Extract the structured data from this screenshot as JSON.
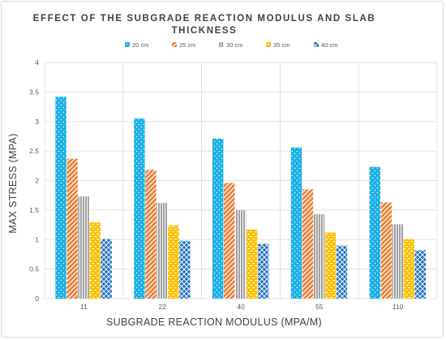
{
  "chart_data": {
    "type": "bar",
    "title_line1": "EFFECT OF THE SUBGRADE REACTION MODULUS AND SLAB",
    "title_line2": "THICKNESS",
    "xlabel": "SUBGRADE REACTION MODULUS (MPA/M)",
    "ylabel": "MAX STRESS (MPA)",
    "categories": [
      "11",
      "22",
      "40",
      "55",
      "110"
    ],
    "ylim": [
      0,
      4
    ],
    "yticks": [
      "0",
      "0.5",
      "1",
      "1.5",
      "2",
      "2.5",
      "3",
      "3.5",
      "4"
    ],
    "grid": true,
    "legend_position": "top",
    "series": [
      {
        "name": "20 cm",
        "color": "#1ab0e8",
        "pattern": "dots",
        "values": [
          3.42,
          3.05,
          2.71,
          2.56,
          2.23
        ]
      },
      {
        "name": "25 cm",
        "color": "#f07c30",
        "pattern": "diagonal",
        "values": [
          2.37,
          2.18,
          1.96,
          1.85,
          1.63
        ]
      },
      {
        "name": "30 cm",
        "color": "#9e9e9e",
        "pattern": "vertical",
        "values": [
          1.73,
          1.62,
          1.5,
          1.43,
          1.26
        ]
      },
      {
        "name": "35 cm",
        "color": "#ffc000",
        "pattern": "dashes",
        "values": [
          1.29,
          1.24,
          1.17,
          1.12,
          1.01
        ]
      },
      {
        "name": "40 cm",
        "color": "#1f6fc4",
        "pattern": "diamond",
        "values": [
          1.01,
          0.98,
          0.93,
          0.9,
          0.82
        ]
      }
    ]
  }
}
